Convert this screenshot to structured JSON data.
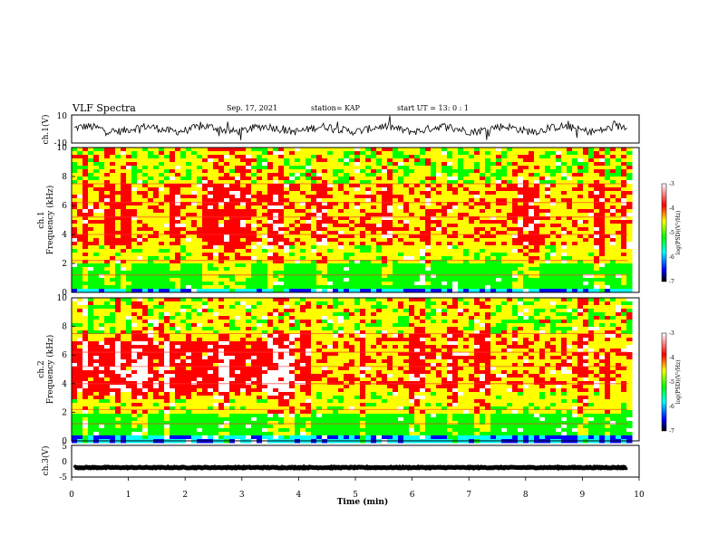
{
  "header": {
    "title": "VLF Spectra",
    "date": "Sep. 17, 2021",
    "station": "station= KAP",
    "start": "start  UT =  13: 0  : 1"
  },
  "chart_data": {
    "type": "heatmap",
    "x_axis": {
      "label": "Time (min)",
      "range": [
        0,
        10
      ],
      "ticks": [
        "0",
        "1",
        "2",
        "3",
        "4",
        "5",
        "6",
        "7",
        "8",
        "9",
        "10"
      ]
    },
    "panels": [
      {
        "name": "ch1-waveform",
        "type": "line",
        "ylabel": "ch.1(V)",
        "ylim": [
          -10,
          10
        ],
        "yticks": [
          "10",
          "-10"
        ],
        "mean": 0,
        "amplitude": 3.5
      },
      {
        "name": "ch1-spectrogram",
        "type": "heatmap",
        "ylabel_top": "ch.1",
        "ylabel": "Frequency (kHz)",
        "ylim": [
          0,
          10
        ],
        "yticks": [
          "0",
          "2",
          "4",
          "6",
          "8",
          "10"
        ],
        "colorbar": {
          "label": "log(PSD)(V²/Hz)",
          "range": [
            -7,
            -3
          ],
          "ticks": [
            "-3",
            "-4",
            "-5",
            "-6",
            "-7"
          ]
        }
      },
      {
        "name": "ch2-spectrogram",
        "type": "heatmap",
        "ylabel_top": "ch.2",
        "ylabel": "Frequency (kHz)",
        "ylim": [
          0,
          10
        ],
        "yticks": [
          "0",
          "2",
          "4",
          "6",
          "8",
          "10"
        ],
        "colorbar": {
          "label": "log(PSD)(V²/Hz)",
          "range": [
            -7,
            -3
          ],
          "ticks": [
            "-3",
            "-4",
            "-5",
            "-6",
            "-7"
          ]
        }
      },
      {
        "name": "ch3-waveform",
        "type": "line",
        "ylabel": "ch.3(V)",
        "ylim": [
          -5,
          5
        ],
        "yticks": [
          "5",
          "0",
          "-5"
        ],
        "mean": -2,
        "amplitude": 0.3
      }
    ],
    "data_end_min": 9.8,
    "colors": {
      "colormap": [
        "#000000",
        "#0000ff",
        "#00ffff",
        "#00ff00",
        "#ffff00",
        "#ff0000",
        "#ffffff"
      ]
    }
  }
}
